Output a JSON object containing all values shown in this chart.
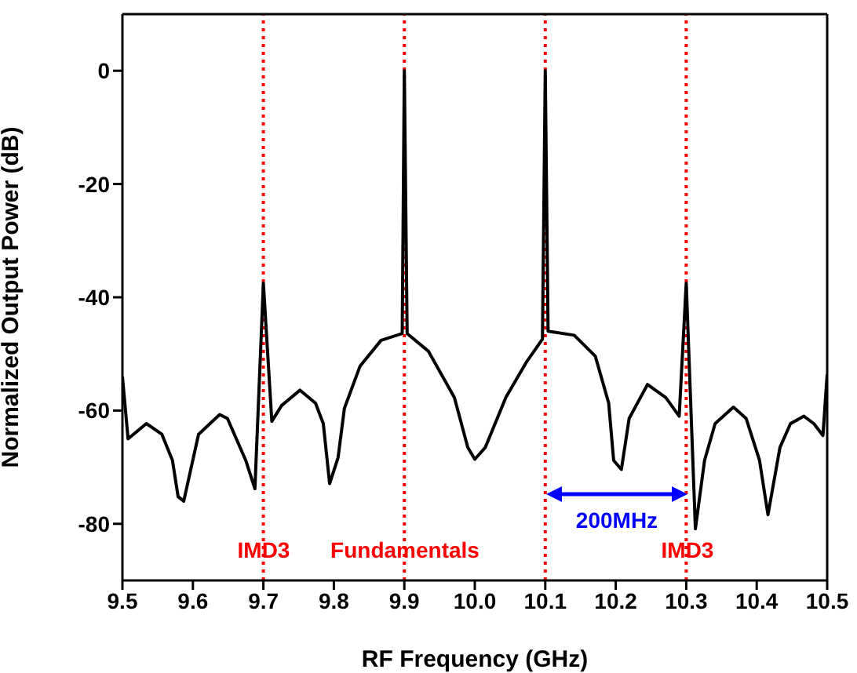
{
  "chart_data": {
    "type": "line",
    "xlabel": "RF Frequency (GHz)",
    "ylabel": "Normalized Output Power (dB)",
    "x": [
      9.5,
      9.508,
      9.534,
      9.556,
      9.571,
      9.579,
      9.587,
      9.608,
      9.638,
      9.649,
      9.675,
      9.688,
      9.7,
      9.712,
      9.726,
      9.752,
      9.774,
      9.785,
      9.794,
      9.806,
      9.815,
      9.837,
      9.867,
      9.897,
      9.9,
      9.904,
      9.934,
      9.971,
      9.99,
      10.0,
      10.015,
      10.044,
      10.074,
      10.096,
      10.1,
      10.104,
      10.141,
      10.171,
      10.19,
      10.197,
      10.208,
      10.219,
      10.245,
      10.271,
      10.29,
      10.3,
      10.313,
      10.326,
      10.341,
      10.367,
      10.385,
      10.404,
      10.416,
      10.433,
      10.448,
      10.467,
      10.481,
      10.494,
      10.5
    ],
    "series": [
      {
        "color": "#000000",
        "values": [
          -54,
          -65,
          -62.3,
          -64.2,
          -68.8,
          -75.2,
          -76,
          -64.2,
          -60.7,
          -61.4,
          -68.8,
          -73.8,
          -37.5,
          -61.9,
          -59.1,
          -56.4,
          -58.7,
          -62.3,
          -72.9,
          -68.3,
          -59.6,
          -52.2,
          -47.6,
          -46.4,
          0,
          -46.4,
          -49.5,
          -57.7,
          -66.5,
          -68.6,
          -66.5,
          -57.7,
          -51.3,
          -47.4,
          0,
          -46,
          -46.7,
          -50.4,
          -58.7,
          -68.8,
          -70.4,
          -61.4,
          -55.4,
          -57.7,
          -61,
          -37.5,
          -80.9,
          -68.8,
          -62.3,
          -59.4,
          -61.4,
          -68.8,
          -78.4,
          -66.5,
          -62.3,
          -61,
          -62.3,
          -64.4,
          -53.6
        ]
      }
    ],
    "xlim": [
      9.5,
      10.5
    ],
    "xticks": [
      9.5,
      9.6,
      9.7,
      9.8,
      9.9,
      {
        "value": 10.0,
        "label": "10.0"
      },
      10.1,
      10.2,
      10.3,
      10.4,
      10.5
    ],
    "ylim": [
      -90,
      10
    ],
    "yticks": [
      -80,
      -60,
      -40,
      -20,
      0
    ],
    "ref_lines": [
      {
        "axis": "x",
        "value": 9.7,
        "color": "#ff0000",
        "line_style": "dotted"
      },
      {
        "axis": "x",
        "value": 9.9,
        "color": "#ff0000",
        "line_style": "dotted"
      },
      {
        "axis": "x",
        "value": 10.1,
        "color": "#ff0000",
        "line_style": "dotted"
      },
      {
        "axis": "x",
        "value": 10.3,
        "color": "#ff0000",
        "line_style": "dotted"
      }
    ],
    "annotations": [
      {
        "text": "IMD3",
        "x": 9.7,
        "y": -85
      },
      {
        "text": "Fundamentals",
        "x": 9.9,
        "y": -85
      },
      "200MHz",
      {
        "text": "IMD3",
        "x": 10.3,
        "y": -85
      }
    ],
    "grid": false,
    "legend": false,
    "marker": "none",
    "line_style": "solid"
  }
}
